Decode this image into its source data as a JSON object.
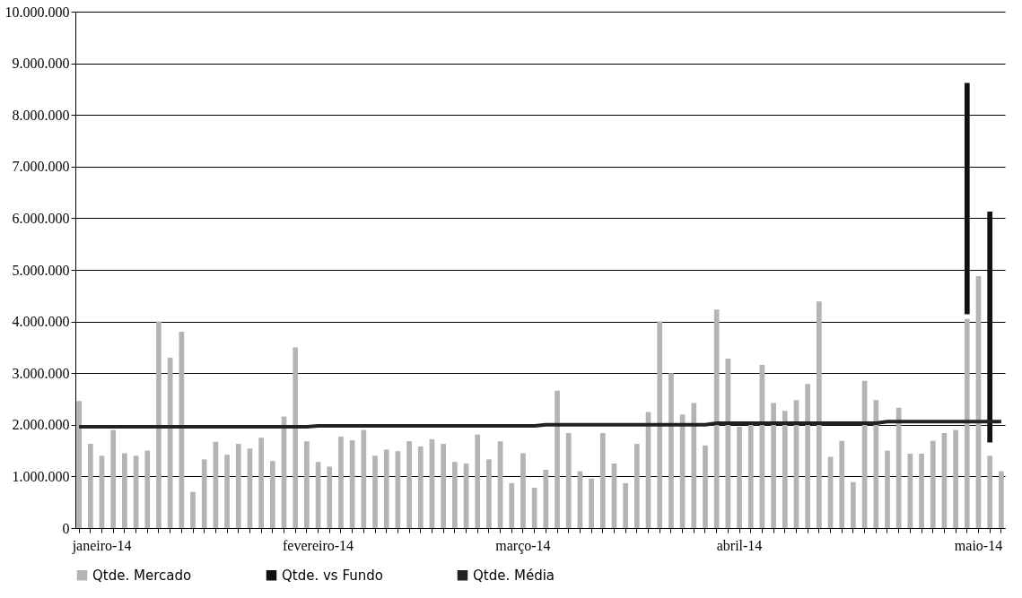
{
  "chart_data": {
    "type": "bar",
    "categories": [
      null,
      null,
      "janeiro-14",
      null,
      null,
      null,
      null,
      null,
      null,
      null,
      null,
      null,
      null,
      null,
      null,
      null,
      null,
      null,
      null,
      null,
      null,
      "fevereiro-14",
      null,
      null,
      null,
      null,
      null,
      null,
      null,
      null,
      null,
      null,
      null,
      null,
      null,
      null,
      null,
      null,
      null,
      "março-14",
      null,
      null,
      null,
      null,
      null,
      null,
      null,
      null,
      null,
      null,
      null,
      null,
      null,
      null,
      null,
      null,
      null,
      null,
      "abril-14",
      null,
      null,
      null,
      null,
      null,
      null,
      null,
      null,
      null,
      null,
      null,
      null,
      null,
      null,
      null,
      null,
      null,
      null,
      null,
      null,
      "maio-14",
      null,
      null
    ],
    "series": [
      {
        "name": "Qtde. Mercado",
        "color": "#b4b4b4",
        "values": [
          2460000,
          1630000,
          1400000,
          1900000,
          1450000,
          1400000,
          1500000,
          4000000,
          3300000,
          3800000,
          700000,
          1330000,
          1670000,
          1420000,
          1630000,
          1540000,
          1750000,
          1300000,
          2160000,
          3500000,
          1680000,
          1280000,
          1190000,
          1770000,
          1700000,
          1900000,
          1400000,
          1520000,
          1490000,
          1680000,
          1580000,
          1720000,
          1630000,
          1280000,
          1250000,
          1810000,
          1330000,
          1680000,
          870000,
          1450000,
          780000,
          1130000,
          2660000,
          1840000,
          1100000,
          960000,
          1840000,
          1250000,
          870000,
          1630000,
          2250000,
          4000000,
          3000000,
          2200000,
          2420000,
          1600000,
          4230000,
          3280000,
          1960000,
          2020000,
          3160000,
          2420000,
          2270000,
          2480000,
          2790000,
          4390000,
          1380000,
          1690000,
          890000,
          2850000,
          2480000,
          1500000,
          2330000,
          1440000,
          1440000,
          1690000,
          1840000,
          1900000,
          4050000,
          4880000,
          1400000,
          1100000
        ]
      },
      {
        "name": "Qtde. vs Fundo",
        "color": "#111111",
        "base": [
          null,
          null,
          null,
          null,
          null,
          null,
          null,
          null,
          null,
          null,
          null,
          null,
          null,
          null,
          null,
          null,
          null,
          null,
          null,
          null,
          null,
          null,
          null,
          null,
          null,
          null,
          null,
          null,
          null,
          null,
          null,
          null,
          null,
          null,
          null,
          null,
          null,
          null,
          null,
          null,
          null,
          null,
          null,
          null,
          null,
          null,
          null,
          null,
          null,
          null,
          null,
          null,
          null,
          null,
          null,
          null,
          null,
          null,
          null,
          null,
          null,
          null,
          null,
          null,
          null,
          null,
          null,
          null,
          null,
          null,
          null,
          null,
          null,
          null,
          null,
          null,
          null,
          null,
          4140000,
          null,
          1660000,
          null
        ],
        "values": [
          null,
          null,
          null,
          null,
          null,
          null,
          null,
          null,
          null,
          null,
          null,
          null,
          null,
          null,
          null,
          null,
          null,
          null,
          null,
          null,
          null,
          null,
          null,
          null,
          null,
          null,
          null,
          null,
          null,
          null,
          null,
          null,
          null,
          null,
          null,
          null,
          null,
          null,
          null,
          null,
          null,
          null,
          null,
          null,
          null,
          null,
          null,
          null,
          null,
          null,
          null,
          null,
          null,
          null,
          null,
          null,
          null,
          null,
          null,
          null,
          null,
          null,
          null,
          null,
          null,
          null,
          null,
          null,
          null,
          null,
          null,
          null,
          null,
          null,
          null,
          null,
          null,
          null,
          4480000,
          null,
          4470000,
          null
        ]
      },
      {
        "name": "Qtde. Média",
        "type": "line",
        "color": "#222222",
        "values": [
          1960000,
          1960000,
          1960000,
          1960000,
          1960000,
          1960000,
          1960000,
          1960000,
          1960000,
          1960000,
          1960000,
          1960000,
          1960000,
          1960000,
          1960000,
          1960000,
          1960000,
          1960000,
          1960000,
          1960000,
          1960000,
          1980000,
          1980000,
          1980000,
          1980000,
          1980000,
          1980000,
          1980000,
          1980000,
          1980000,
          1980000,
          1980000,
          1980000,
          1980000,
          1980000,
          1980000,
          1980000,
          1980000,
          1980000,
          1980000,
          1980000,
          2000000,
          2000000,
          2000000,
          2000000,
          2000000,
          2000000,
          2000000,
          2000000,
          2000000,
          2000000,
          2000000,
          2000000,
          2000000,
          2000000,
          2000000,
          2030000,
          2030000,
          2030000,
          2030000,
          2030000,
          2030000,
          2030000,
          2030000,
          2030000,
          2030000,
          2030000,
          2030000,
          2030000,
          2030000,
          2030000,
          2060000,
          2060000,
          2060000,
          2060000,
          2060000,
          2060000,
          2060000,
          2060000,
          2060000,
          2060000,
          2060000
        ]
      }
    ],
    "ylim": [
      0,
      10000000
    ],
    "yticks": [
      {
        "value": 0,
        "label": "0"
      },
      {
        "value": 1000000,
        "label": "1.000.000"
      },
      {
        "value": 2000000,
        "label": "2.000.000"
      },
      {
        "value": 3000000,
        "label": "3.000.000"
      },
      {
        "value": 4000000,
        "label": "4.000.000"
      },
      {
        "value": 5000000,
        "label": "5.000.000"
      },
      {
        "value": 6000000,
        "label": "6.000.000"
      },
      {
        "value": 7000000,
        "label": "7.000.000"
      },
      {
        "value": 8000000,
        "label": "8.000.000"
      },
      {
        "value": 9000000,
        "label": "9.000.000"
      },
      {
        "value": 10000000,
        "label": "10.000.000"
      }
    ],
    "grid": "y",
    "legend": "bottom"
  }
}
